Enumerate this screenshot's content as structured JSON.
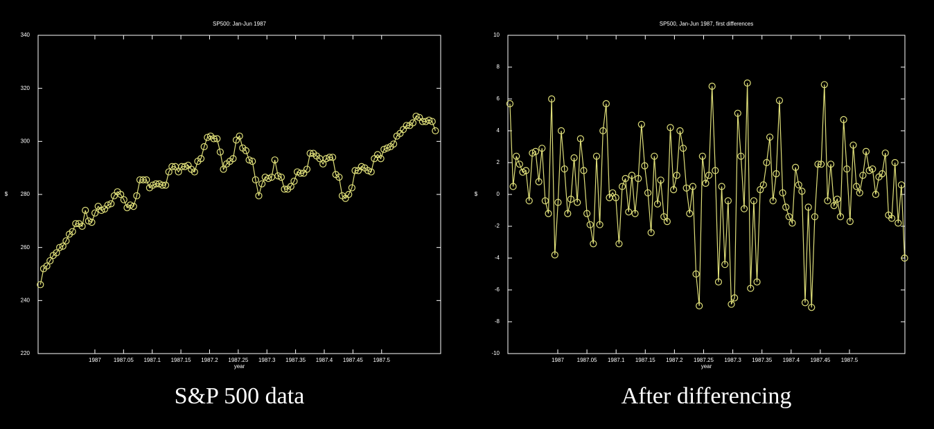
{
  "chart_data": [
    {
      "type": "line",
      "title": "SP500:  Jan-Jun  1987",
      "xlabel": "year",
      "ylabel": "$",
      "caption": "S&P 500 data",
      "color": "#e0e07a",
      "marker": "circle",
      "xlim": [
        1986.901,
        1987.603
      ],
      "ylim": [
        220,
        340
      ],
      "xticks": [
        1987,
        1987.05,
        1987.1,
        1987.15,
        1987.2,
        1987.25,
        1987.3,
        1987.35,
        1987.4,
        1987.45,
        1987.5
      ],
      "yticks": [
        220,
        240,
        260,
        280,
        300,
        320,
        340
      ],
      "x": [
        1986.905,
        1986.9106,
        1986.9162,
        1986.9218,
        1986.9274,
        1986.933,
        1986.9386,
        1986.9442,
        1986.9498,
        1986.9554,
        1986.961,
        1986.9666,
        1986.9722,
        1986.9778,
        1986.9834,
        1986.989,
        1986.9946,
        1987.0002,
        1987.0058,
        1987.0114,
        1987.017,
        1987.0226,
        1987.0282,
        1987.0338,
        1987.0394,
        1987.045,
        1987.0506,
        1987.0562,
        1987.0618,
        1987.0674,
        1987.073,
        1987.0786,
        1987.0842,
        1987.0898,
        1987.0954,
        1987.101,
        1987.1066,
        1987.1122,
        1987.1178,
        1987.1234,
        1987.129,
        1987.1346,
        1987.1402,
        1987.1458,
        1987.1514,
        1987.157,
        1987.1626,
        1987.1682,
        1987.1738,
        1987.1794,
        1987.185,
        1987.1906,
        1987.1962,
        1987.2018,
        1987.2074,
        1987.213,
        1987.2186,
        1987.2242,
        1987.2298,
        1987.2354,
        1987.241,
        1987.2466,
        1987.2522,
        1987.2578,
        1987.2634,
        1987.269,
        1987.2746,
        1987.2802,
        1987.2858,
        1987.2914,
        1987.297,
        1987.3026,
        1987.3082,
        1987.3138,
        1987.3194,
        1987.325,
        1987.3306,
        1987.3362,
        1987.3418,
        1987.3474,
        1987.353,
        1987.3586,
        1987.3642,
        1987.3698,
        1987.3754,
        1987.381,
        1987.3866,
        1987.3922,
        1987.3978,
        1987.4034,
        1987.409,
        1987.4146,
        1987.4202,
        1987.4258,
        1987.4314,
        1987.437,
        1987.4426,
        1987.4482,
        1987.4538,
        1987.4594,
        1987.465,
        1987.4706,
        1987.4762,
        1987.4818,
        1987.4874,
        1987.493,
        1987.4986,
        1987.5042,
        1987.5098,
        1987.5154,
        1987.521,
        1987.5266,
        1987.5322,
        1987.5378,
        1987.5434,
        1987.549,
        1987.5546,
        1987.5602,
        1987.5658,
        1987.5714,
        1987.577,
        1987.5826,
        1987.5882,
        1987.5938
      ],
      "values": [
        246,
        252,
        253,
        255,
        257,
        258,
        260,
        260.5,
        262.5,
        265,
        266,
        269,
        269,
        268,
        274,
        270,
        269.5,
        273,
        275.5,
        274,
        274.5,
        276,
        276.5,
        279.5,
        281,
        280,
        278,
        275,
        276,
        275.5,
        279.5,
        285.5,
        285.5,
        285.5,
        282.5,
        283.5,
        284,
        284,
        283.5,
        283.5,
        288.5,
        290.5,
        290.5,
        288.5,
        290.5,
        290.5,
        291,
        289.5,
        288.5,
        292.5,
        293.5,
        298,
        301.5,
        302,
        301,
        301,
        296,
        289.5,
        291.5,
        292.5,
        293.5,
        300.5,
        302,
        297.5,
        296.5,
        293,
        292.5,
        285.5,
        279.5,
        284,
        286.5,
        286,
        286.5,
        293,
        287,
        286.5,
        282,
        282,
        283,
        285,
        288.5,
        288,
        288,
        289.5,
        295.5,
        295.5,
        294.5,
        293.5,
        291.5,
        293.5,
        294,
        294,
        287.5,
        286.5,
        279.5,
        278.5,
        280,
        282.5,
        289,
        289,
        290.5,
        290,
        289,
        288.5,
        293.5,
        295,
        293.5,
        297,
        297.5,
        298,
        299,
        302,
        303,
        304.5,
        306,
        306,
        307,
        309.5,
        309,
        307.5,
        307.5,
        308,
        307.5,
        304
      ]
    },
    {
      "type": "line",
      "title": "SP500,  Jan-Jun  1987,  first differences",
      "xlabel": "year",
      "ylabel": "$",
      "caption": "After differencing",
      "color": "#e0e07a",
      "marker": "circle",
      "xlim": [
        1986.9145,
        1987.595
      ],
      "ylim": [
        -10,
        10
      ],
      "xticks": [
        1987,
        1987.05,
        1987.1,
        1987.15,
        1987.2,
        1987.25,
        1987.3,
        1987.35,
        1987.4,
        1987.45,
        1987.5
      ],
      "yticks": [
        -10,
        -8,
        -6,
        -4,
        -2,
        0,
        2,
        4,
        6,
        8,
        10
      ],
      "x": [
        1986.918,
        1986.9235,
        1986.929,
        1986.9345,
        1986.94,
        1986.9455,
        1986.951,
        1986.9565,
        1986.962,
        1986.9675,
        1986.973,
        1986.9785,
        1986.984,
        1986.9895,
        1986.995,
        1987.0005,
        1987.006,
        1987.0115,
        1987.017,
        1987.0225,
        1987.028,
        1987.0335,
        1987.039,
        1987.0445,
        1987.05,
        1987.0555,
        1987.061,
        1987.0665,
        1987.072,
        1987.0775,
        1987.083,
        1987.0885,
        1987.094,
        1987.0995,
        1987.105,
        1987.1105,
        1987.116,
        1987.1215,
        1987.127,
        1987.1325,
        1987.138,
        1987.1435,
        1987.149,
        1987.1545,
        1987.16,
        1987.1655,
        1987.171,
        1987.1765,
        1987.182,
        1987.1875,
        1987.193,
        1987.1985,
        1987.204,
        1987.2095,
        1987.215,
        1987.2205,
        1987.226,
        1987.2315,
        1987.237,
        1987.2425,
        1987.248,
        1987.2535,
        1987.259,
        1987.2645,
        1987.27,
        1987.2755,
        1987.281,
        1987.2865,
        1987.292,
        1987.2975,
        1987.303,
        1987.3085,
        1987.314,
        1987.3195,
        1987.325,
        1987.3305,
        1987.336,
        1987.3415,
        1987.347,
        1987.3525,
        1987.358,
        1987.3635,
        1987.369,
        1987.3745,
        1987.38,
        1987.3855,
        1987.391,
        1987.3965,
        1987.402,
        1987.4075,
        1987.413,
        1987.4185,
        1987.424,
        1987.4295,
        1987.435,
        1987.4405,
        1987.446,
        1987.4515,
        1987.457,
        1987.4625,
        1987.468,
        1987.4735,
        1987.479,
        1987.4845,
        1987.49,
        1987.4955,
        1987.501,
        1987.5065,
        1987.512,
        1987.5175,
        1987.523,
        1987.5285,
        1987.534,
        1987.5395,
        1987.545,
        1987.5505,
        1987.556,
        1987.5615,
        1987.567,
        1987.5725,
        1987.578,
        1987.5835,
        1987.589,
        1987.5945
      ],
      "values": [
        5.7,
        0.5,
        2.4,
        1.9,
        1.4,
        1.5,
        -0.4,
        2.6,
        2.7,
        0.8,
        2.9,
        -0.4,
        -1.2,
        6.0,
        -3.8,
        -0.5,
        4.0,
        1.6,
        -1.2,
        -0.3,
        2.3,
        -0.5,
        3.5,
        1.5,
        -1.2,
        -1.9,
        -3.1,
        2.4,
        -1.9,
        4.0,
        5.7,
        -0.2,
        0.1,
        -0.2,
        -3.1,
        0.5,
        1.0,
        -1.1,
        1.2,
        -1.2,
        1.0,
        4.4,
        1.8,
        0.1,
        -2.4,
        2.4,
        -0.6,
        0.9,
        -1.4,
        -1.7,
        4.2,
        0.3,
        1.2,
        4.0,
        2.9,
        0.4,
        -1.2,
        0.5,
        -5.0,
        -7.0,
        2.4,
        0.7,
        1.2,
        6.8,
        1.5,
        -5.5,
        0.5,
        -4.4,
        -0.4,
        -6.9,
        -6.5,
        5.1,
        2.4,
        -0.9,
        7.0,
        -5.9,
        -0.4,
        -5.5,
        0.3,
        0.6,
        2.0,
        3.6,
        -0.4,
        1.3,
        5.9,
        0.1,
        -0.8,
        -1.4,
        -1.8,
        1.7,
        0.6,
        0.2,
        -6.8,
        -0.8,
        -7.1,
        -1.4,
        1.9,
        1.9,
        6.9,
        -0.4,
        1.9,
        -0.7,
        -0.3,
        -1.4,
        4.7,
        1.6,
        -1.7,
        3.1,
        0.5,
        0.1,
        1.2,
        2.7,
        1.5,
        1.6,
        0.0,
        1.1,
        1.3,
        2.6,
        -1.3,
        -1.5,
        2.0,
        -1.8,
        0.6,
        -4.0
      ]
    }
  ]
}
